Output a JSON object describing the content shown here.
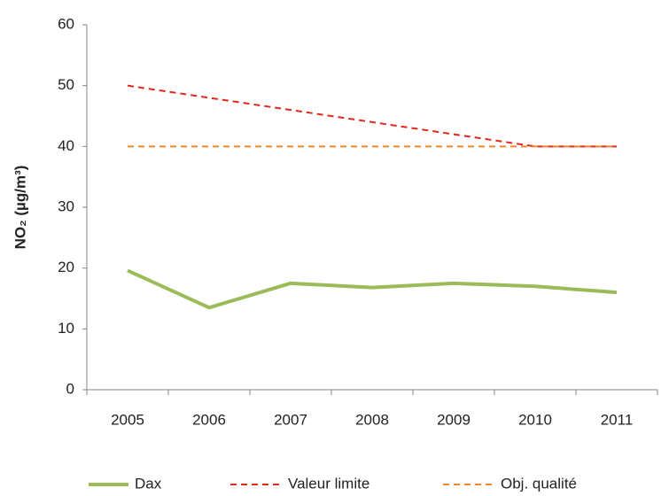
{
  "chart_data": {
    "type": "line",
    "y_label": "NO₂ (µg/m³)",
    "categories": [
      "2005",
      "2006",
      "2007",
      "2008",
      "2009",
      "2010",
      "2011"
    ],
    "series": [
      {
        "name": "Dax",
        "color": "#9bbb59",
        "dash": false,
        "values": [
          19.6,
          13.5,
          17.5,
          16.8,
          17.5,
          17.0,
          16.0
        ]
      },
      {
        "name": "Valeur limite",
        "color": "#e0281e",
        "dash": true,
        "values": [
          50,
          48,
          46,
          44,
          42,
          40,
          40
        ]
      },
      {
        "name": "Obj. qualité",
        "color": "#f0862c",
        "dash": true,
        "values": [
          40,
          40,
          40,
          40,
          40,
          40,
          40
        ]
      }
    ],
    "ylim": [
      0,
      60
    ],
    "yticks": [
      0,
      10,
      20,
      30,
      40,
      50,
      60
    ],
    "grid": false,
    "legend": "bottom"
  }
}
